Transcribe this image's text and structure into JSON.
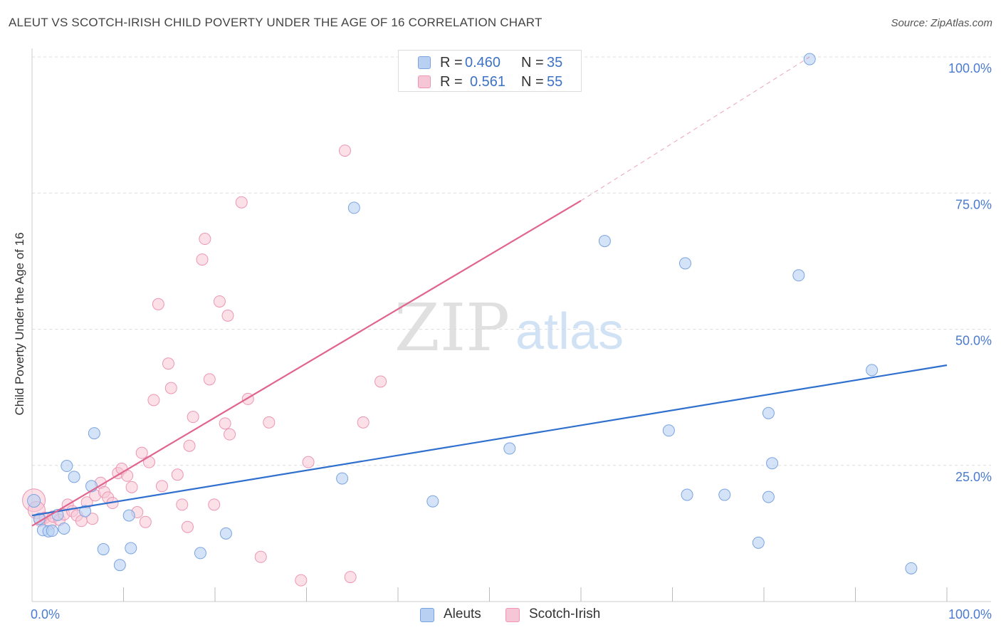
{
  "header": {
    "title": "ALEUT VS SCOTCH-IRISH CHILD POVERTY UNDER THE AGE OF 16 CORRELATION CHART",
    "source": "Source: ZipAtlas.com"
  },
  "watermark": {
    "zip": "ZIP",
    "atlas": "atlas"
  },
  "legend_top": [
    {
      "r_label": "R =",
      "r_value": "0.460",
      "n_label": "N =",
      "n_value": "35"
    },
    {
      "r_label": "R =",
      "r_value": "0.561",
      "n_label": "N =",
      "n_value": "55"
    }
  ],
  "legend_bottom": [
    {
      "label": "Aleuts"
    },
    {
      "label": "Scotch-Irish"
    }
  ],
  "colors": {
    "aleut_fill": "#b8d0f2",
    "aleut_stroke": "#7aa4e0",
    "aleut_line": "#2f6fce",
    "scotch_fill": "#f7c6d6",
    "scotch_stroke": "#ec96b3",
    "scotch_line": "#e0648e",
    "tick_label": "#4a7bd0",
    "grid": "#dddddd"
  },
  "chart_data": {
    "type": "scatter",
    "title": "ALEUT VS SCOTCH-IRISH CHILD POVERTY UNDER THE AGE OF 16 CORRELATION CHART",
    "xlabel": "",
    "ylabel": "Child Poverty Under the Age of 16",
    "xlim": [
      0,
      100
    ],
    "ylim": [
      0,
      100
    ],
    "x_tick_labels": [
      "0.0%",
      "100.0%"
    ],
    "y_ticks": [
      25,
      50,
      75,
      100
    ],
    "y_tick_labels": [
      "25.0%",
      "50.0%",
      "75.0%",
      "100.0%"
    ],
    "grid": true,
    "legend_placement": "top-center",
    "series": [
      {
        "name": "Aleuts",
        "r": 0.46,
        "n": 35,
        "trend": {
          "x": [
            0,
            100
          ],
          "y": [
            15.8,
            43.4
          ]
        },
        "points": [
          {
            "x": 0.2,
            "y": 18.5,
            "s": 9
          },
          {
            "x": 0.8,
            "y": 15.2,
            "s": 8
          },
          {
            "x": 1.2,
            "y": 13.1,
            "s": 8
          },
          {
            "x": 1.8,
            "y": 12.9,
            "s": 8
          },
          {
            "x": 2.2,
            "y": 13.0,
            "s": 8
          },
          {
            "x": 2.8,
            "y": 15.9,
            "s": 8
          },
          {
            "x": 3.5,
            "y": 13.4,
            "s": 8
          },
          {
            "x": 3.8,
            "y": 24.9,
            "s": 8
          },
          {
            "x": 4.6,
            "y": 22.9,
            "s": 8
          },
          {
            "x": 5.8,
            "y": 16.6,
            "s": 8
          },
          {
            "x": 6.5,
            "y": 21.2,
            "s": 8
          },
          {
            "x": 6.8,
            "y": 30.9,
            "s": 8
          },
          {
            "x": 7.8,
            "y": 9.6,
            "s": 8
          },
          {
            "x": 9.6,
            "y": 6.7,
            "s": 8
          },
          {
            "x": 10.6,
            "y": 15.8,
            "s": 8
          },
          {
            "x": 10.8,
            "y": 9.8,
            "s": 8
          },
          {
            "x": 18.4,
            "y": 8.9,
            "s": 8
          },
          {
            "x": 21.2,
            "y": 12.5,
            "s": 8
          },
          {
            "x": 33.9,
            "y": 22.6,
            "s": 8
          },
          {
            "x": 35.2,
            "y": 72.3,
            "s": 8
          },
          {
            "x": 43.8,
            "y": 18.4,
            "s": 8
          },
          {
            "x": 52.2,
            "y": 28.1,
            "s": 8
          },
          {
            "x": 62.6,
            "y": 66.2,
            "s": 8
          },
          {
            "x": 69.6,
            "y": 31.4,
            "s": 8
          },
          {
            "x": 71.4,
            "y": 62.1,
            "s": 8
          },
          {
            "x": 71.6,
            "y": 19.6,
            "s": 8
          },
          {
            "x": 75.7,
            "y": 19.6,
            "s": 8
          },
          {
            "x": 80.5,
            "y": 34.6,
            "s": 8
          },
          {
            "x": 80.5,
            "y": 19.2,
            "s": 8
          },
          {
            "x": 80.9,
            "y": 25.4,
            "s": 8
          },
          {
            "x": 79.4,
            "y": 10.8,
            "s": 8
          },
          {
            "x": 83.8,
            "y": 59.9,
            "s": 8
          },
          {
            "x": 85.0,
            "y": 99.6,
            "s": 8
          },
          {
            "x": 91.8,
            "y": 42.5,
            "s": 8
          },
          {
            "x": 96.1,
            "y": 6.1,
            "s": 8
          }
        ]
      },
      {
        "name": "Scotch-Irish",
        "r": 0.561,
        "n": 55,
        "trend": {
          "x": [
            0,
            60
          ],
          "y": [
            13.9,
            73.6
          ]
        },
        "trend_dashed": {
          "x": [
            60,
            85
          ],
          "y": [
            73.6,
            100
          ]
        },
        "points": [
          {
            "x": 0.2,
            "y": 18.6,
            "s": 16
          },
          {
            "x": 0.5,
            "y": 16.8,
            "s": 12
          },
          {
            "x": 0.9,
            "y": 15.0,
            "s": 9
          },
          {
            "x": 1.4,
            "y": 15.4,
            "s": 8
          },
          {
            "x": 2.0,
            "y": 14.3,
            "s": 8
          },
          {
            "x": 2.3,
            "y": 15.6,
            "s": 8
          },
          {
            "x": 3.0,
            "y": 15.0,
            "s": 8
          },
          {
            "x": 3.5,
            "y": 16.0,
            "s": 8
          },
          {
            "x": 3.9,
            "y": 17.8,
            "s": 8
          },
          {
            "x": 4.4,
            "y": 16.6,
            "s": 8
          },
          {
            "x": 4.9,
            "y": 15.8,
            "s": 8
          },
          {
            "x": 5.4,
            "y": 14.8,
            "s": 8
          },
          {
            "x": 6.0,
            "y": 18.2,
            "s": 8
          },
          {
            "x": 6.6,
            "y": 15.2,
            "s": 8
          },
          {
            "x": 6.9,
            "y": 19.5,
            "s": 8
          },
          {
            "x": 7.5,
            "y": 21.8,
            "s": 8
          },
          {
            "x": 7.9,
            "y": 20.1,
            "s": 8
          },
          {
            "x": 8.3,
            "y": 19.1,
            "s": 8
          },
          {
            "x": 8.8,
            "y": 18.1,
            "s": 8
          },
          {
            "x": 9.4,
            "y": 23.6,
            "s": 8
          },
          {
            "x": 9.8,
            "y": 24.4,
            "s": 8
          },
          {
            "x": 10.4,
            "y": 23.1,
            "s": 8
          },
          {
            "x": 10.9,
            "y": 21.0,
            "s": 8
          },
          {
            "x": 11.5,
            "y": 16.4,
            "s": 8
          },
          {
            "x": 12.0,
            "y": 27.3,
            "s": 8
          },
          {
            "x": 12.4,
            "y": 14.6,
            "s": 8
          },
          {
            "x": 12.8,
            "y": 25.6,
            "s": 8
          },
          {
            "x": 13.3,
            "y": 37.0,
            "s": 8
          },
          {
            "x": 13.8,
            "y": 54.6,
            "s": 8
          },
          {
            "x": 14.2,
            "y": 21.2,
            "s": 8
          },
          {
            "x": 14.9,
            "y": 43.7,
            "s": 8
          },
          {
            "x": 15.2,
            "y": 39.2,
            "s": 8
          },
          {
            "x": 15.9,
            "y": 23.3,
            "s": 8
          },
          {
            "x": 16.4,
            "y": 17.8,
            "s": 8
          },
          {
            "x": 17.0,
            "y": 13.7,
            "s": 8
          },
          {
            "x": 17.2,
            "y": 28.6,
            "s": 8
          },
          {
            "x": 17.6,
            "y": 33.9,
            "s": 8
          },
          {
            "x": 18.6,
            "y": 62.8,
            "s": 8
          },
          {
            "x": 18.9,
            "y": 66.6,
            "s": 8
          },
          {
            "x": 19.4,
            "y": 40.8,
            "s": 8
          },
          {
            "x": 19.9,
            "y": 17.8,
            "s": 8
          },
          {
            "x": 20.5,
            "y": 55.1,
            "s": 8
          },
          {
            "x": 21.1,
            "y": 32.7,
            "s": 8
          },
          {
            "x": 21.4,
            "y": 52.5,
            "s": 8
          },
          {
            "x": 21.6,
            "y": 30.7,
            "s": 8
          },
          {
            "x": 22.9,
            "y": 73.3,
            "s": 8
          },
          {
            "x": 23.6,
            "y": 37.2,
            "s": 8
          },
          {
            "x": 25.0,
            "y": 8.2,
            "s": 8
          },
          {
            "x": 25.9,
            "y": 32.9,
            "s": 8
          },
          {
            "x": 29.4,
            "y": 3.9,
            "s": 8
          },
          {
            "x": 30.2,
            "y": 25.6,
            "s": 8
          },
          {
            "x": 34.2,
            "y": 82.8,
            "s": 8
          },
          {
            "x": 34.8,
            "y": 4.5,
            "s": 8
          },
          {
            "x": 36.2,
            "y": 32.9,
            "s": 8
          },
          {
            "x": 38.1,
            "y": 40.4,
            "s": 8
          }
        ]
      }
    ]
  }
}
